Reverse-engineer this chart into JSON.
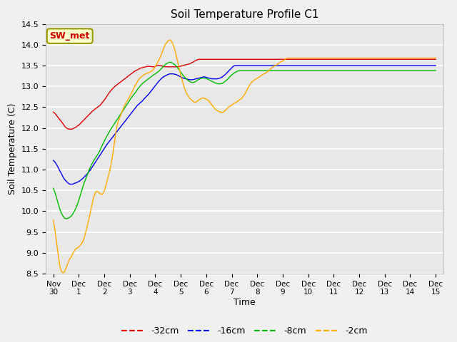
{
  "title": "Soil Temperature Profile C1",
  "xlabel": "Time",
  "ylabel": "Soil Temperature (C)",
  "ylim": [
    8.5,
    14.5
  ],
  "plot_bg_color": "#e8e8e8",
  "fig_bg_color": "#f0f0f0",
  "label_box_text": "SW_met",
  "label_box_bg": "#ffffcc",
  "label_box_border": "#999900",
  "label_box_text_color": "#cc0000",
  "legend_entries": [
    "-32cm",
    "-16cm",
    "-8cm",
    "-2cm"
  ],
  "line_colors": [
    "#dd0000",
    "#0000ee",
    "#00bb00",
    "#ffaa00"
  ],
  "x_tick_labels": [
    "Nov 30",
    "Dec 1",
    "Dec 2",
    "Dec 3",
    "Dec 4",
    "Dec 5",
    "Dec 6",
    "Dec 7",
    "Dec 8",
    "Dec 9",
    "Dec 10",
    "Dec 11",
    "Dec 12",
    "Dec 13",
    "Dec 14",
    "Dec 15"
  ],
  "num_days": 16,
  "series": {
    "d32": [
      12.38,
      12.35,
      12.3,
      12.25,
      12.2,
      12.15,
      12.1,
      12.04,
      12.0,
      11.98,
      11.97,
      11.97,
      11.98,
      12.0,
      12.02,
      12.05,
      12.08,
      12.12,
      12.16,
      12.2,
      12.24,
      12.28,
      12.32,
      12.36,
      12.4,
      12.43,
      12.46,
      12.49,
      12.52,
      12.55,
      12.6,
      12.65,
      12.7,
      12.76,
      12.82,
      12.87,
      12.92,
      12.96,
      13.0,
      13.03,
      13.06,
      13.09,
      13.12,
      13.15,
      13.18,
      13.21,
      13.24,
      13.27,
      13.3,
      13.33,
      13.36,
      13.38,
      13.4,
      13.42,
      13.44,
      13.45,
      13.46,
      13.47,
      13.48,
      13.48,
      13.48,
      13.47,
      13.47,
      13.48,
      13.5,
      13.51,
      13.5,
      13.49,
      13.48,
      13.47,
      13.47,
      13.47,
      13.47,
      13.47,
      13.47,
      13.47,
      13.47,
      13.47,
      13.48,
      13.49,
      13.5,
      13.51,
      13.52,
      13.53,
      13.54,
      13.56,
      13.58,
      13.6,
      13.62,
      13.64,
      13.65,
      13.65,
      13.65,
      13.65,
      13.65,
      13.65,
      13.65,
      13.65,
      13.65,
      13.65,
      13.65,
      13.65,
      13.65,
      13.65,
      13.65,
      13.65,
      13.65,
      13.65,
      13.65,
      13.65,
      13.65,
      13.65,
      13.65,
      13.65,
      13.65,
      13.65,
      13.65,
      13.65,
      13.65,
      13.65,
      13.65,
      13.65,
      13.65,
      13.65,
      13.65,
      13.65,
      13.65,
      13.65,
      13.65,
      13.65,
      13.65,
      13.65,
      13.65,
      13.65,
      13.65,
      13.65,
      13.65,
      13.65,
      13.65,
      13.65,
      13.65,
      13.65,
      13.65,
      13.65,
      13.65,
      13.65,
      13.65,
      13.65,
      13.65,
      13.65,
      13.65,
      13.65,
      13.65,
      13.65,
      13.65,
      13.65,
      13.65,
      13.65,
      13.65,
      13.65,
      13.65,
      13.65,
      13.65,
      13.65,
      13.65,
      13.65,
      13.65,
      13.65,
      13.65,
      13.65,
      13.65,
      13.65,
      13.65,
      13.65,
      13.65,
      13.65,
      13.65,
      13.65,
      13.65,
      13.65,
      13.65,
      13.65,
      13.65,
      13.65,
      13.65,
      13.65,
      13.65,
      13.65,
      13.65,
      13.65,
      13.65,
      13.65,
      13.65,
      13.65,
      13.65,
      13.65,
      13.65,
      13.65,
      13.65,
      13.65,
      13.65,
      13.65,
      13.65,
      13.65,
      13.65,
      13.65,
      13.65,
      13.65,
      13.65,
      13.65,
      13.65,
      13.65,
      13.65,
      13.65,
      13.65,
      13.65,
      13.65,
      13.65,
      13.65,
      13.65,
      13.65,
      13.65,
      13.65,
      13.65,
      13.65,
      13.65,
      13.65,
      13.65,
      13.65,
      13.65,
      13.65,
      13.65,
      13.65,
      13.65,
      13.65,
      13.65,
      13.65
    ],
    "d16": [
      11.22,
      11.18,
      11.12,
      11.05,
      10.97,
      10.9,
      10.82,
      10.76,
      10.72,
      10.68,
      10.65,
      10.65,
      10.65,
      10.67,
      10.68,
      10.7,
      10.72,
      10.75,
      10.78,
      10.82,
      10.86,
      10.9,
      10.95,
      11.0,
      11.06,
      11.12,
      11.18,
      11.24,
      11.3,
      11.36,
      11.42,
      11.48,
      11.54,
      11.6,
      11.65,
      11.7,
      11.75,
      11.8,
      11.85,
      11.9,
      11.95,
      12.0,
      12.05,
      12.1,
      12.15,
      12.2,
      12.25,
      12.3,
      12.35,
      12.4,
      12.45,
      12.5,
      12.55,
      12.58,
      12.62,
      12.65,
      12.7,
      12.74,
      12.78,
      12.82,
      12.87,
      12.92,
      12.97,
      13.02,
      13.07,
      13.12,
      13.16,
      13.2,
      13.23,
      13.25,
      13.27,
      13.29,
      13.3,
      13.3,
      13.3,
      13.29,
      13.28,
      13.26,
      13.24,
      13.22,
      13.2,
      13.19,
      13.18,
      13.17,
      13.16,
      13.16,
      13.16,
      13.17,
      13.18,
      13.19,
      13.2,
      13.21,
      13.22,
      13.23,
      13.22,
      13.21,
      13.2,
      13.19,
      13.18,
      13.18,
      13.18,
      13.18,
      13.19,
      13.2,
      13.22,
      13.25,
      13.28,
      13.32,
      13.36,
      13.4,
      13.44,
      13.48,
      13.5,
      13.5,
      13.5,
      13.5,
      13.5,
      13.5,
      13.5,
      13.5,
      13.5,
      13.5,
      13.5,
      13.5,
      13.5,
      13.5,
      13.5,
      13.5,
      13.5,
      13.5,
      13.5,
      13.5,
      13.5,
      13.5,
      13.5,
      13.5,
      13.5,
      13.5,
      13.5,
      13.5,
      13.5,
      13.5,
      13.5,
      13.5,
      13.5,
      13.5,
      13.5,
      13.5,
      13.5,
      13.5,
      13.5,
      13.5,
      13.5,
      13.5,
      13.5,
      13.5,
      13.5,
      13.5,
      13.5,
      13.5,
      13.5,
      13.5,
      13.5,
      13.5,
      13.5,
      13.5,
      13.5,
      13.5,
      13.5,
      13.5,
      13.5,
      13.5,
      13.5,
      13.5,
      13.5,
      13.5,
      13.5,
      13.5,
      13.5,
      13.5,
      13.5,
      13.5,
      13.5,
      13.5,
      13.5,
      13.5,
      13.5,
      13.5,
      13.5,
      13.5,
      13.5,
      13.5,
      13.5,
      13.5,
      13.5,
      13.5,
      13.5,
      13.5,
      13.5,
      13.5,
      13.5,
      13.5,
      13.5,
      13.5,
      13.5,
      13.5,
      13.5,
      13.5,
      13.5,
      13.5,
      13.5,
      13.5,
      13.5,
      13.5,
      13.5,
      13.5,
      13.5,
      13.5,
      13.5,
      13.5,
      13.5,
      13.5,
      13.5,
      13.5,
      13.5,
      13.5,
      13.5,
      13.5,
      13.5,
      13.5,
      13.5,
      13.5,
      13.5,
      13.5,
      13.5,
      13.5,
      13.5
    ],
    "d8": [
      10.55,
      10.45,
      10.32,
      10.18,
      10.05,
      9.95,
      9.88,
      9.83,
      9.82,
      9.83,
      9.85,
      9.88,
      9.93,
      10.0,
      10.08,
      10.18,
      10.3,
      10.43,
      10.56,
      10.68,
      10.78,
      10.88,
      10.98,
      11.07,
      11.15,
      11.22,
      11.28,
      11.34,
      11.4,
      11.48,
      11.57,
      11.65,
      11.73,
      11.8,
      11.87,
      11.94,
      12.0,
      12.06,
      12.12,
      12.18,
      12.24,
      12.3,
      12.36,
      12.42,
      12.48,
      12.54,
      12.6,
      12.66,
      12.72,
      12.77,
      12.82,
      12.87,
      12.93,
      12.98,
      13.03,
      13.07,
      13.1,
      13.13,
      13.16,
      13.19,
      13.22,
      13.25,
      13.28,
      13.3,
      13.33,
      13.36,
      13.4,
      13.44,
      13.48,
      13.52,
      13.55,
      13.57,
      13.58,
      13.57,
      13.55,
      13.52,
      13.48,
      13.43,
      13.38,
      13.32,
      13.27,
      13.22,
      13.18,
      13.15,
      13.12,
      13.1,
      13.09,
      13.1,
      13.12,
      13.15,
      13.17,
      13.19,
      13.2,
      13.2,
      13.19,
      13.18,
      13.16,
      13.14,
      13.12,
      13.1,
      13.08,
      13.07,
      13.06,
      13.06,
      13.07,
      13.09,
      13.12,
      13.15,
      13.19,
      13.23,
      13.27,
      13.3,
      13.33,
      13.35,
      13.37,
      13.38,
      13.38,
      13.38,
      13.38,
      13.38,
      13.38,
      13.38,
      13.38,
      13.38,
      13.38,
      13.38,
      13.38,
      13.38,
      13.38,
      13.38,
      13.38,
      13.38,
      13.38,
      13.38,
      13.38,
      13.38,
      13.38,
      13.38,
      13.38,
      13.38,
      13.38,
      13.38,
      13.38,
      13.38,
      13.38,
      13.38,
      13.38,
      13.38,
      13.38,
      13.38,
      13.38,
      13.38,
      13.38,
      13.38,
      13.38,
      13.38,
      13.38,
      13.38,
      13.38,
      13.38,
      13.38,
      13.38,
      13.38,
      13.38,
      13.38,
      13.38,
      13.38,
      13.38,
      13.38,
      13.38,
      13.38,
      13.38,
      13.38,
      13.38,
      13.38,
      13.38,
      13.38,
      13.38,
      13.38,
      13.38,
      13.38,
      13.38,
      13.38,
      13.38,
      13.38,
      13.38,
      13.38,
      13.38,
      13.38,
      13.38,
      13.38,
      13.38,
      13.38,
      13.38,
      13.38,
      13.38,
      13.38,
      13.38,
      13.38,
      13.38,
      13.38,
      13.38,
      13.38,
      13.38,
      13.38,
      13.38,
      13.38,
      13.38,
      13.38,
      13.38,
      13.38,
      13.38,
      13.38,
      13.38,
      13.38,
      13.38,
      13.38,
      13.38,
      13.38,
      13.38,
      13.38,
      13.38,
      13.38,
      13.38,
      13.38,
      13.38,
      13.38,
      13.38,
      13.38,
      13.38,
      13.38,
      13.38,
      13.38,
      13.38,
      13.38,
      13.38,
      13.38
    ],
    "d2": [
      9.78,
      9.55,
      9.25,
      8.95,
      8.68,
      8.55,
      8.52,
      8.55,
      8.65,
      8.75,
      8.85,
      8.9,
      8.98,
      9.05,
      9.1,
      9.12,
      9.15,
      9.2,
      9.25,
      9.35,
      9.5,
      9.65,
      9.82,
      10.0,
      10.18,
      10.35,
      10.45,
      10.48,
      10.45,
      10.42,
      10.4,
      10.45,
      10.55,
      10.7,
      10.85,
      11.0,
      11.2,
      11.45,
      11.72,
      12.0,
      12.15,
      12.25,
      12.35,
      12.45,
      12.55,
      12.62,
      12.68,
      12.75,
      12.82,
      12.9,
      12.98,
      13.05,
      13.12,
      13.18,
      13.22,
      13.25,
      13.28,
      13.3,
      13.32,
      13.33,
      13.35,
      13.38,
      13.42,
      13.48,
      13.55,
      13.62,
      13.7,
      13.8,
      13.9,
      14.0,
      14.05,
      14.1,
      14.12,
      14.08,
      14.0,
      13.88,
      13.72,
      13.55,
      13.38,
      13.22,
      13.08,
      12.95,
      12.85,
      12.78,
      12.72,
      12.68,
      12.65,
      12.62,
      12.62,
      12.65,
      12.68,
      12.7,
      12.72,
      12.72,
      12.7,
      12.68,
      12.65,
      12.6,
      12.55,
      12.5,
      12.45,
      12.42,
      12.4,
      12.38,
      12.37,
      12.38,
      12.42,
      12.45,
      12.5,
      12.52,
      12.55,
      12.58,
      12.6,
      12.62,
      12.65,
      12.68,
      12.7,
      12.75,
      12.8,
      12.88,
      12.95,
      13.02,
      13.08,
      13.12,
      13.15,
      13.18,
      13.2,
      13.22,
      13.25,
      13.28,
      13.3,
      13.32,
      13.35,
      13.38,
      13.42,
      13.45,
      13.48,
      13.5,
      13.52,
      13.55,
      13.58,
      13.6,
      13.62,
      13.65,
      13.68,
      13.68,
      13.68,
      13.68,
      13.68,
      13.68,
      13.68,
      13.68,
      13.68,
      13.68,
      13.68,
      13.68,
      13.68,
      13.68,
      13.68,
      13.68,
      13.68,
      13.68,
      13.68,
      13.68,
      13.68,
      13.68,
      13.68,
      13.68,
      13.68,
      13.68,
      13.68,
      13.68,
      13.68,
      13.68,
      13.68,
      13.68,
      13.68,
      13.68,
      13.68,
      13.68,
      13.68,
      13.68,
      13.68,
      13.68,
      13.68,
      13.68,
      13.68,
      13.68,
      13.68,
      13.68,
      13.68,
      13.68,
      13.68,
      13.68,
      13.68,
      13.68,
      13.68,
      13.68,
      13.68,
      13.68,
      13.68,
      13.68,
      13.68,
      13.68,
      13.68,
      13.68,
      13.68,
      13.68,
      13.68,
      13.68,
      13.68,
      13.68,
      13.68,
      13.68,
      13.68,
      13.68,
      13.68,
      13.68,
      13.68,
      13.68,
      13.68,
      13.68,
      13.68,
      13.68,
      13.68,
      13.68,
      13.68,
      13.68,
      13.68,
      13.68,
      13.68,
      13.68,
      13.68,
      13.68,
      13.68,
      13.68,
      13.68
    ]
  }
}
